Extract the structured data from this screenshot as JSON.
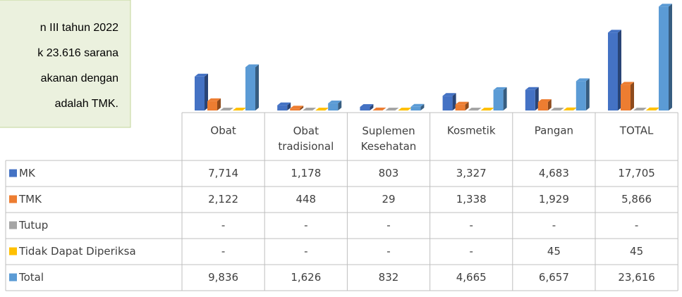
{
  "textbox": {
    "lines": [
      "n III tahun 2022",
      "k 23.616 sarana",
      "akanan dengan",
      "adalah TMK."
    ]
  },
  "chart_data": {
    "type": "bar",
    "categories": [
      "Obat",
      "Obat tradisional",
      "Suplemen Kesehatan",
      "Kosmetik",
      "Pangan",
      "TOTAL"
    ],
    "ylim": [
      0,
      24000
    ],
    "series": [
      {
        "name": "MK",
        "color": "#4472c4",
        "values": [
          7714,
          1178,
          803,
          3327,
          4683,
          17705
        ],
        "value_labels": [
          "7,714",
          "1,178",
          "803",
          "3,327",
          "4,683",
          "17,705"
        ]
      },
      {
        "name": "TMK",
        "color": "#ed7d31",
        "values": [
          2122,
          448,
          29,
          1338,
          1929,
          5866
        ],
        "value_labels": [
          "2,122",
          "448",
          "29",
          "1,338",
          "1,929",
          "5,866"
        ]
      },
      {
        "name": "Tutup",
        "color": "#a5a5a5",
        "values": [
          0,
          0,
          0,
          0,
          0,
          0
        ],
        "value_labels": [
          "-",
          "-",
          "-",
          "-",
          "-",
          "-"
        ]
      },
      {
        "name": "Tidak Dapat Diperiksa",
        "color": "#ffc000",
        "values": [
          0,
          0,
          0,
          0,
          45,
          45
        ],
        "value_labels": [
          "-",
          "-",
          "-",
          "-",
          "45",
          "45"
        ]
      },
      {
        "name": "Total",
        "color": "#5b9bd5",
        "values": [
          9836,
          1626,
          832,
          4665,
          6657,
          23616
        ],
        "value_labels": [
          "9,836",
          "1,626",
          "832",
          "4,665",
          "6,657",
          "23,616"
        ]
      }
    ]
  }
}
